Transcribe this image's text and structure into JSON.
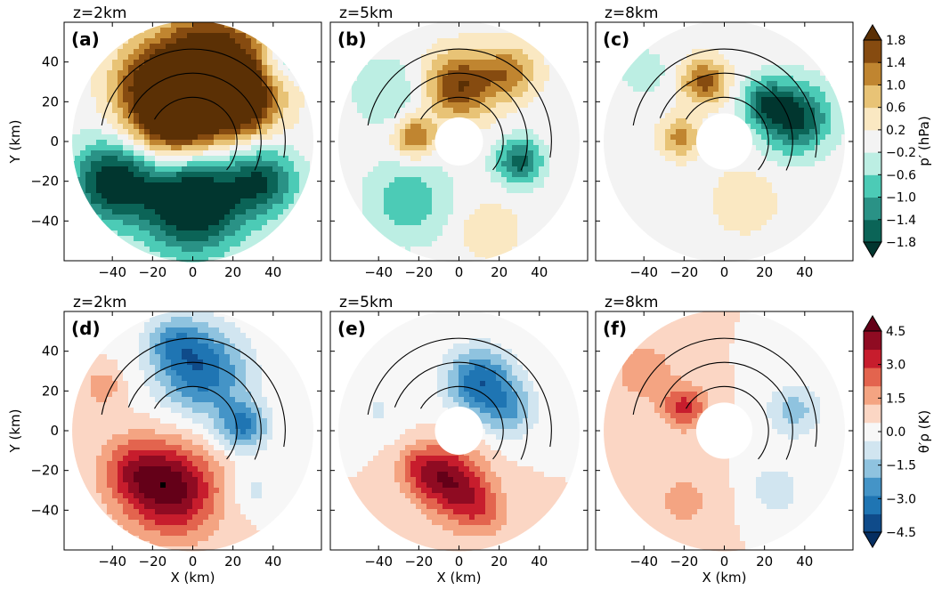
{
  "chart_data": [
    {
      "type": "heatmap",
      "panel_label": "(a)",
      "title": "z=2km",
      "field": "pressure_perturbation",
      "xlabel": "",
      "ylabel": "Y (km)",
      "xlim": [
        -64,
        64
      ],
      "ylim": [
        -60,
        60
      ],
      "xticks": [
        "−40",
        "−20",
        "0",
        "20",
        "40"
      ],
      "yticks": [
        "40",
        "20",
        "0",
        "−20",
        "−40"
      ],
      "inner_hole_radius_km": 0,
      "outer_radius_km": 60,
      "blobs": [
        {
          "x": 8,
          "y": 35,
          "v": 3.0,
          "r": 20
        },
        {
          "x": -10,
          "y": 12,
          "v": 2.4,
          "r": 16
        },
        {
          "x": 25,
          "y": 20,
          "v": 1.6,
          "r": 12
        },
        {
          "x": -25,
          "y": 32,
          "v": 0.9,
          "r": 12
        },
        {
          "x": 0,
          "y": -30,
          "v": -2.6,
          "r": 18
        },
        {
          "x": -40,
          "y": -20,
          "v": -2.2,
          "r": 14
        },
        {
          "x": 35,
          "y": -20,
          "v": -1.6,
          "r": 12
        },
        {
          "x": 45,
          "y": 40,
          "v": -0.8,
          "r": 8
        }
      ]
    },
    {
      "type": "heatmap",
      "panel_label": "(b)",
      "title": "z=5km",
      "field": "pressure_perturbation",
      "xlabel": "",
      "ylabel": "",
      "xlim": [
        -64,
        64
      ],
      "ylim": [
        -60,
        60
      ],
      "xticks": [
        "−40",
        "−20",
        "0",
        "20",
        "40"
      ],
      "yticks": [],
      "inner_hole_radius_km": 12,
      "outer_radius_km": 60,
      "blobs": [
        {
          "x": 0,
          "y": 28,
          "v": 1.8,
          "r": 12
        },
        {
          "x": 25,
          "y": 35,
          "v": 1.2,
          "r": 10
        },
        {
          "x": -22,
          "y": 2,
          "v": 1.5,
          "r": 7
        },
        {
          "x": 15,
          "y": -45,
          "v": 0.6,
          "r": 10
        },
        {
          "x": 30,
          "y": -10,
          "v": -1.6,
          "r": 8
        },
        {
          "x": -25,
          "y": -30,
          "v": -0.9,
          "r": 14
        },
        {
          "x": -35,
          "y": 25,
          "v": -0.6,
          "r": 12
        }
      ]
    },
    {
      "type": "heatmap",
      "panel_label": "(c)",
      "title": "z=8km",
      "field": "pressure_perturbation",
      "xlabel": "",
      "ylabel": "",
      "xlim": [
        -64,
        64
      ],
      "ylim": [
        -60,
        60
      ],
      "xticks": [
        "−40",
        "−20",
        "0",
        "20",
        "40"
      ],
      "yticks": [],
      "inner_hole_radius_km": 14,
      "outer_radius_km": 60,
      "blobs": [
        {
          "x": -10,
          "y": 30,
          "v": 1.6,
          "r": 8
        },
        {
          "x": -22,
          "y": 2,
          "v": 1.2,
          "r": 7
        },
        {
          "x": 35,
          "y": 12,
          "v": -2.0,
          "r": 12
        },
        {
          "x": 20,
          "y": 20,
          "v": -1.2,
          "r": 8
        },
        {
          "x": 10,
          "y": -30,
          "v": 0.5,
          "r": 12
        },
        {
          "x": -40,
          "y": 35,
          "v": -0.5,
          "r": 8
        }
      ]
    },
    {
      "type": "heatmap",
      "panel_label": "(d)",
      "title": "z=2km",
      "field": "density_potential_temperature_perturbation",
      "xlabel": "X (km)",
      "ylabel": "Y (km)",
      "xlim": [
        -64,
        64
      ],
      "ylim": [
        -60,
        60
      ],
      "xticks": [
        "−40",
        "−20",
        "0",
        "20",
        "40"
      ],
      "yticks": [
        "40",
        "20",
        "0",
        "−20",
        "−40"
      ],
      "inner_hole_radius_km": 0,
      "outer_radius_km": 60,
      "blobs": [
        {
          "x": 5,
          "y": 30,
          "v": -3.5,
          "r": 16
        },
        {
          "x": 25,
          "y": 2,
          "v": -3.0,
          "r": 9
        },
        {
          "x": -10,
          "y": 45,
          "v": -1.8,
          "r": 10
        },
        {
          "x": -10,
          "y": -30,
          "v": 4.0,
          "r": 16
        },
        {
          "x": -30,
          "y": -20,
          "v": 2.0,
          "r": 12
        },
        {
          "x": -45,
          "y": 22,
          "v": 1.5,
          "r": 6
        },
        {
          "x": 30,
          "y": -30,
          "v": -1.0,
          "r": 8
        }
      ]
    },
    {
      "type": "heatmap",
      "panel_label": "(e)",
      "title": "z=5km",
      "field": "density_potential_temperature_perturbation",
      "xlabel": "X (km)",
      "ylabel": "",
      "xlim": [
        -64,
        64
      ],
      "ylim": [
        -60,
        60
      ],
      "xticks": [
        "−40",
        "−20",
        "0",
        "20",
        "40"
      ],
      "yticks": [],
      "inner_hole_radius_km": 12,
      "outer_radius_km": 60,
      "blobs": [
        {
          "x": 10,
          "y": 25,
          "v": -3.5,
          "r": 12
        },
        {
          "x": 25,
          "y": 10,
          "v": -2.0,
          "r": 10
        },
        {
          "x": -5,
          "y": -25,
          "v": 3.5,
          "r": 12
        },
        {
          "x": 10,
          "y": -40,
          "v": 1.8,
          "r": 10
        },
        {
          "x": -20,
          "y": -18,
          "v": 1.5,
          "r": 8
        },
        {
          "x": -40,
          "y": 10,
          "v": -0.8,
          "r": 10
        }
      ]
    },
    {
      "type": "heatmap",
      "panel_label": "(f)",
      "title": "z=8km",
      "field": "density_potential_temperature_perturbation",
      "xlabel": "X (km)",
      "ylabel": "",
      "xlim": [
        -64,
        64
      ],
      "ylim": [
        -60,
        60
      ],
      "xticks": [
        "−40",
        "−20",
        "0",
        "20",
        "40"
      ],
      "yticks": [],
      "inner_hole_radius_km": 14,
      "outer_radius_km": 60,
      "blobs": [
        {
          "x": -20,
          "y": 12,
          "v": 2.5,
          "r": 8
        },
        {
          "x": -40,
          "y": 30,
          "v": 1.5,
          "r": 10
        },
        {
          "x": 35,
          "y": 10,
          "v": -1.8,
          "r": 10
        },
        {
          "x": 25,
          "y": -30,
          "v": -1.2,
          "r": 10
        },
        {
          "x": -20,
          "y": -35,
          "v": 1.0,
          "r": 12
        }
      ]
    }
  ],
  "colorbars": [
    {
      "label": "p′ (hPa)",
      "levels": [
        -1.8,
        -1.4,
        -1.0,
        -0.6,
        -0.2,
        0.2,
        0.6,
        1.0,
        1.4,
        1.8
      ],
      "tick_labels": [
        "−1.8",
        "−1.4",
        "−1.0",
        "−0.6",
        "−0.2",
        "0.2",
        "0.6",
        "1.0",
        "1.4",
        "1.8"
      ],
      "colors": [
        "#01362f",
        "#0b6457",
        "#2a9286",
        "#4ccbb6",
        "#bceee3",
        "#f3f3f3",
        "#fae8c2",
        "#e8c376",
        "#c08530",
        "#864b10",
        "#5b3005"
      ]
    },
    {
      "label": "θ′ρ (K)",
      "levels": [
        -4.5,
        -3.75,
        -3.0,
        -2.25,
        -1.5,
        -0.75,
        0.0,
        0.75,
        1.5,
        2.25,
        3.0,
        3.75,
        4.5
      ],
      "tick_labels": [
        "−4.5",
        "−3.0",
        "−1.5",
        "0.0",
        "1.5",
        "3.0",
        "4.5"
      ],
      "colors": [
        "#052e61",
        "#0f4b8a",
        "#1f75b3",
        "#4494c7",
        "#8fc3df",
        "#d1e5f0",
        "#f7f7f7",
        "#fbd6c4",
        "#f4a482",
        "#e3644e",
        "#c71d2d",
        "#8f0b22",
        "#640018"
      ]
    }
  ]
}
